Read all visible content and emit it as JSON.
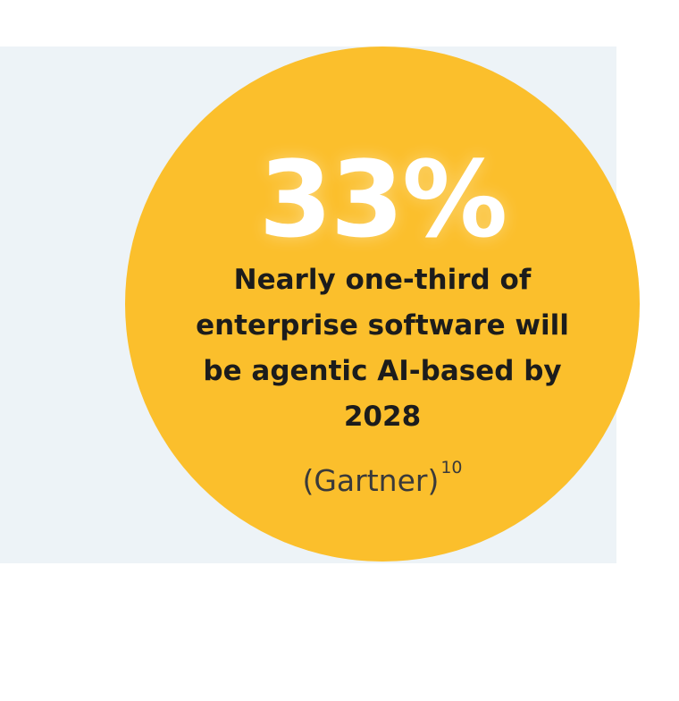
{
  "stat": {
    "value": "33%",
    "description": "Nearly one-third of enterprise software will be agentic AI-based by 2028",
    "source_name": "(Gartner)",
    "source_ref": "10"
  },
  "colors": {
    "circle": "#fbbf2c",
    "panel": "#edf3f7",
    "stat_text": "#ffffff",
    "body_text": "#1c1c1c"
  }
}
